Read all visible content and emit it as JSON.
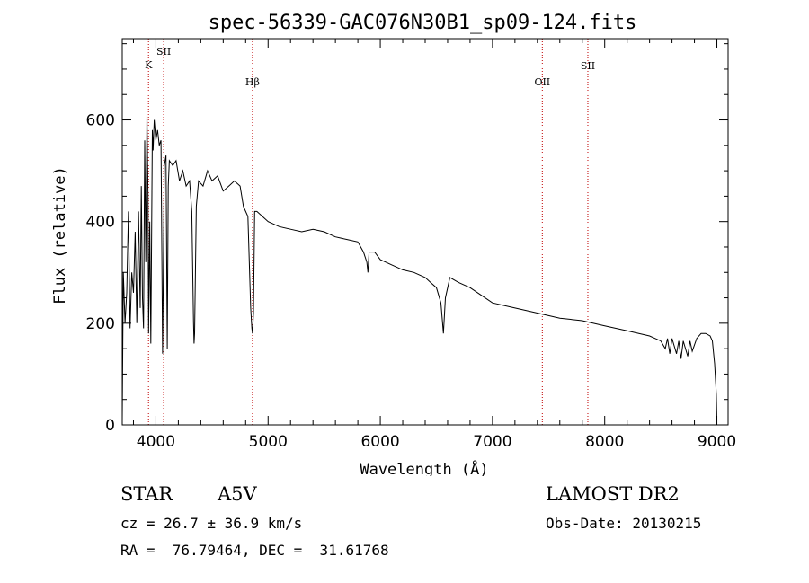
{
  "chart_data": {
    "type": "line",
    "title": "spec-56339-GAC076N30B1_sp09-124.fits",
    "xlabel": "Wavelength (Å)",
    "ylabel": "Flux (relative)",
    "xlim": [
      3700,
      9100
    ],
    "ylim": [
      0,
      760
    ],
    "xticks": [
      4000,
      5000,
      6000,
      7000,
      8000,
      9000
    ],
    "yticks": [
      0,
      200,
      400,
      600
    ],
    "xtick_labels": [
      "4000",
      "5000",
      "6000",
      "7000",
      "8000",
      "9000"
    ],
    "ytick_labels": [
      "0",
      "200",
      "400",
      "600"
    ],
    "grid": false,
    "series": [
      {
        "x": [
          3700,
          3710,
          3725,
          3740,
          3755,
          3770,
          3785,
          3800,
          3815,
          3830,
          3845,
          3860,
          3870,
          3880,
          3890,
          3900,
          3910,
          3920,
          3930,
          3935,
          3945,
          3955,
          3968,
          3975,
          3985,
          4000,
          4015,
          4030,
          4045,
          4060,
          4075,
          4090,
          4101,
          4110,
          4120,
          4150,
          4180,
          4210,
          4240,
          4270,
          4300,
          4320,
          4335,
          4340,
          4345,
          4360,
          4380,
          4420,
          4460,
          4500,
          4550,
          4600,
          4650,
          4700,
          4750,
          4780,
          4820,
          4845,
          4855,
          4861,
          4870,
          4880,
          4900,
          4950,
          5000,
          5100,
          5200,
          5300,
          5400,
          5500,
          5600,
          5700,
          5800,
          5850,
          5880,
          5890,
          5900,
          5950,
          6000,
          6100,
          6200,
          6300,
          6400,
          6450,
          6500,
          6540,
          6563,
          6580,
          6620,
          6700,
          6800,
          6900,
          7000,
          7200,
          7400,
          7600,
          7800,
          8000,
          8200,
          8400,
          8500,
          8540,
          8560,
          8580,
          8600,
          8640,
          8660,
          8680,
          8700,
          8740,
          8760,
          8780,
          8820,
          8860,
          8900,
          8940,
          8960,
          8980,
          8995,
          9000
        ],
        "values": [
          10,
          300,
          200,
          260,
          420,
          190,
          300,
          260,
          380,
          200,
          420,
          230,
          470,
          250,
          190,
          560,
          320,
          610,
          450,
          180,
          400,
          160,
          580,
          540,
          600,
          560,
          580,
          550,
          560,
          140,
          510,
          530,
          150,
          470,
          520,
          510,
          520,
          480,
          500,
          470,
          480,
          420,
          200,
          160,
          180,
          430,
          480,
          470,
          500,
          480,
          490,
          460,
          470,
          480,
          470,
          430,
          410,
          230,
          190,
          180,
          220,
          420,
          420,
          410,
          400,
          390,
          385,
          380,
          385,
          380,
          370,
          365,
          360,
          340,
          320,
          300,
          340,
          340,
          325,
          315,
          305,
          300,
          290,
          280,
          270,
          240,
          180,
          250,
          290,
          280,
          270,
          255,
          240,
          230,
          220,
          210,
          205,
          195,
          185,
          175,
          165,
          150,
          170,
          140,
          170,
          140,
          165,
          130,
          165,
          135,
          165,
          145,
          170,
          180,
          180,
          175,
          165,
          120,
          60,
          10
        ]
      }
    ],
    "annotations": [
      {
        "label": "K",
        "x": 3934
      },
      {
        "label": "SII",
        "x": 4069
      },
      {
        "label": "Hβ",
        "x": 4861
      },
      {
        "label": "OII",
        "x": 7444
      },
      {
        "label": "SII",
        "x": 7850
      }
    ]
  },
  "info": {
    "class": "STAR",
    "subclass": "A5V",
    "survey": "LAMOST DR2",
    "cz": "cz = 26.7 ± 36.9 km/s",
    "obs_date": "Obs-Date: 20130215",
    "radec": "RA =  76.79464, DEC =  31.61768"
  }
}
